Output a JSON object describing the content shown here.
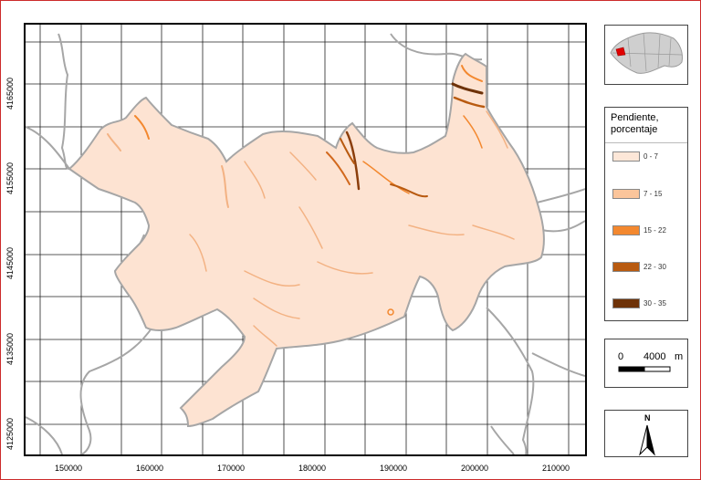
{
  "map": {
    "x_ticks": [
      "150000",
      "160000",
      "170000",
      "180000",
      "190000",
      "200000",
      "210000"
    ],
    "y_ticks": [
      "4165000",
      "4155000",
      "4145000",
      "4135000",
      "4125000"
    ]
  },
  "legend": {
    "title_line1": "Pendiente,",
    "title_line2": "porcentaje",
    "items": [
      {
        "label": "0 - 7",
        "color": "#fde7d8"
      },
      {
        "label": "7 - 15",
        "color": "#fbc59b"
      },
      {
        "label": "15 - 22",
        "color": "#f3882f"
      },
      {
        "label": "22 - 30",
        "color": "#b85a10"
      },
      {
        "label": "30 - 35",
        "color": "#6e3208"
      }
    ]
  },
  "scale_bar": {
    "start": "0",
    "value": "4000",
    "unit": "m"
  },
  "north_arrow": {
    "label": "N"
  },
  "colors": {
    "region_fill": "#fde3d2",
    "boundary": "#a6a6a6",
    "frame": "#cc2b2b",
    "inset_highlight": "#e00000"
  }
}
